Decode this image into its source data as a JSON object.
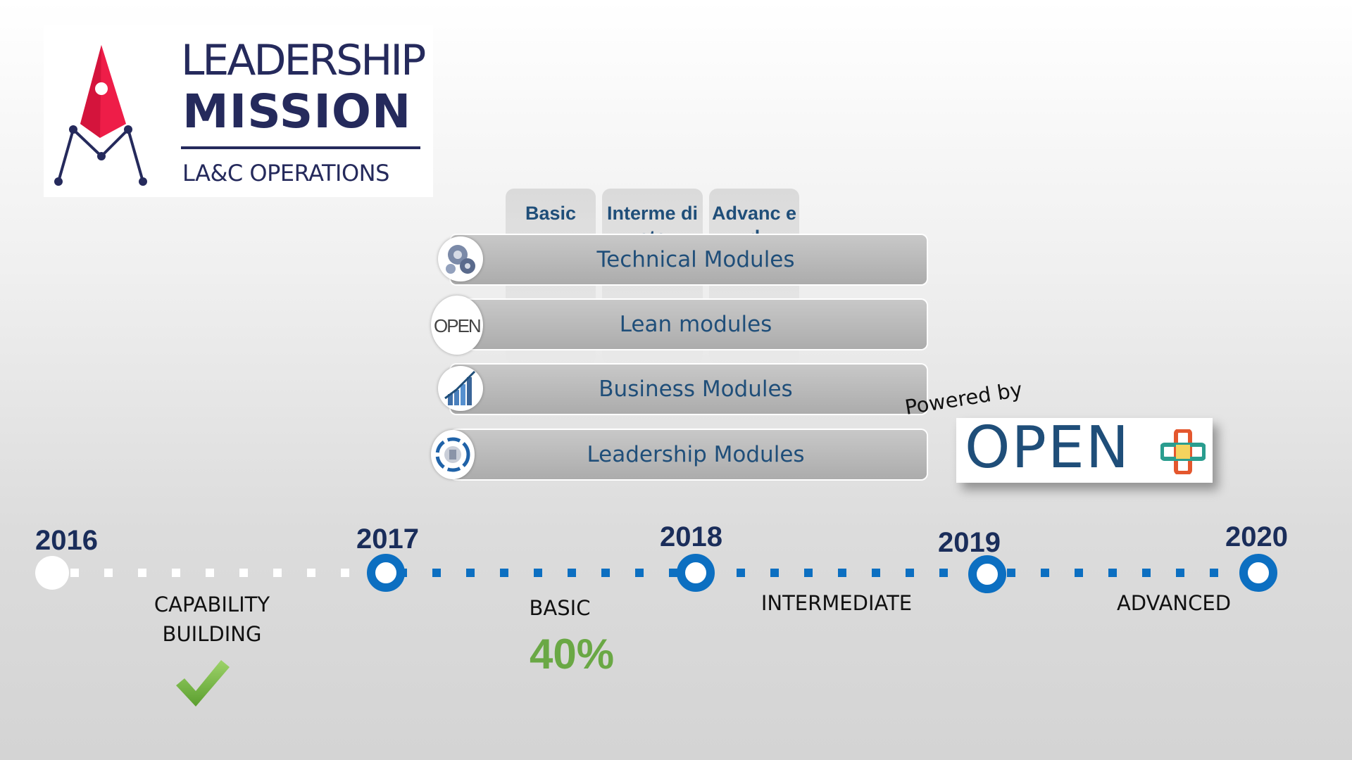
{
  "logo": {
    "line1": "LEADERSHIP",
    "line2": "MISSION",
    "line3": "LA&C OPERATIONS",
    "icon": "rocket-m-icon",
    "colors": {
      "rocket": "#ee1d48",
      "text": "#252a5c"
    }
  },
  "levels": [
    "Basic",
    "Interme diate",
    "Advanc ed"
  ],
  "modules": [
    {
      "label": "Technical Modules",
      "icon": "gears-icon"
    },
    {
      "label": "Lean modules",
      "icon": "open-logo-icon",
      "icon_text": "OPEN"
    },
    {
      "label": "Business Modules",
      "icon": "growth-chart-icon"
    },
    {
      "label": "Leadership Modules",
      "icon": "leadership-badge-icon"
    }
  ],
  "powered_by": {
    "label": "Powered by",
    "brand": "OPEN",
    "icon": "colorful-plus-icon"
  },
  "timeline": {
    "years": [
      "2016",
      "2017",
      "2018",
      "2019",
      "2020"
    ],
    "stages": {
      "capability": "CAPABILITY BUILDING",
      "basic": "BASIC",
      "intermediate": "INTERMEDIATE",
      "advanced": "ADVANCED"
    },
    "progress_label": "40%",
    "progress_value": 40,
    "capability_status": "check-icon",
    "colors": {
      "node": "#0c6fc1",
      "year": "#1a2d5a",
      "progress": "#6aa845"
    }
  }
}
